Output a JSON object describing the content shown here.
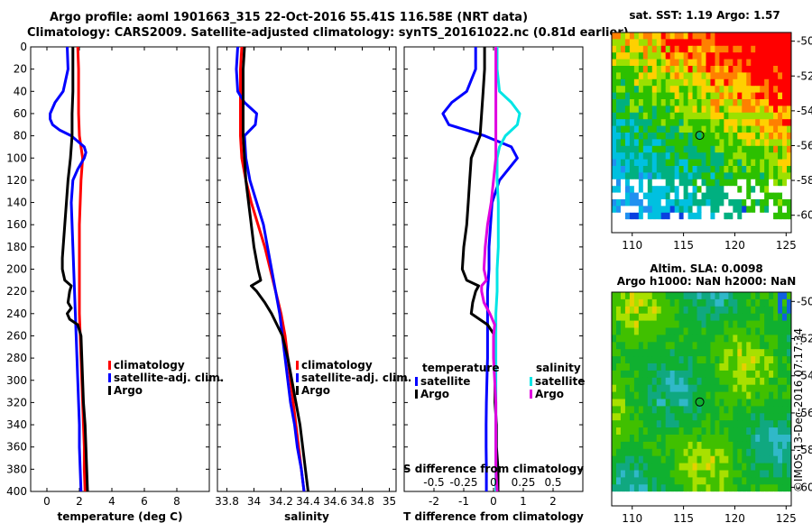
{
  "header": {
    "line1": "Argo profile: aoml 1901663_315 22-Oct-2016 55.41S 116.58E (NRT data)",
    "line2": "Climatology: CARS2009. Satellite-adjusted climatology: synTS_20161022.nc (0.81d earlier)"
  },
  "colors": {
    "climatology": "#ff0000",
    "satellite": "#0000ff",
    "argo": "#000000",
    "sat_salinity": "#00e5e5",
    "argo_salinity": "#e000e0"
  },
  "chart_data": [
    {
      "type": "line",
      "id": "temperature",
      "xlabel": "temperature (deg C)",
      "ylabel": "",
      "xlim": [
        -1,
        10
      ],
      "ylim": [
        400,
        0
      ],
      "xticks": [
        0,
        2,
        4,
        6,
        8
      ],
      "yticks": [
        0,
        20,
        40,
        60,
        80,
        100,
        120,
        140,
        160,
        180,
        200,
        220,
        240,
        260,
        280,
        300,
        320,
        340,
        360,
        380,
        400
      ],
      "legend": [
        {
          "label": "climatology",
          "color": "#ff0000"
        },
        {
          "label": "satellite-adj. clim.",
          "color": "#0000ff"
        },
        {
          "label": "Argo",
          "color": "#000000"
        }
      ],
      "series": [
        {
          "name": "climatology",
          "color": "#ff0000",
          "depth": [
            0,
            20,
            40,
            60,
            80,
            90,
            100,
            110,
            120,
            140,
            160,
            180,
            200,
            220,
            240,
            260,
            280,
            300,
            320,
            340,
            360,
            380,
            400
          ],
          "x": [
            1.9,
            1.95,
            1.95,
            1.95,
            2.0,
            2.1,
            2.2,
            2.15,
            2.1,
            2.05,
            2.0,
            2.0,
            2.0,
            2.0,
            2.0,
            2.05,
            2.1,
            2.15,
            2.2,
            2.25,
            2.3,
            2.3,
            2.35
          ]
        },
        {
          "name": "satellite-adj. clim.",
          "color": "#0000ff",
          "depth": [
            0,
            20,
            40,
            50,
            60,
            65,
            70,
            75,
            80,
            90,
            95,
            100,
            110,
            120,
            140,
            160,
            180,
            200,
            220,
            240,
            260,
            280,
            300,
            320,
            340,
            360,
            380,
            400
          ],
          "x": [
            1.25,
            1.3,
            1.0,
            0.5,
            0.2,
            0.2,
            0.35,
            0.8,
            1.5,
            2.3,
            2.4,
            2.3,
            1.9,
            1.6,
            1.5,
            1.55,
            1.6,
            1.65,
            1.7,
            1.75,
            1.8,
            1.85,
            1.9,
            1.95,
            2.0,
            2.0,
            2.05,
            2.1
          ]
        },
        {
          "name": "Argo",
          "color": "#000000",
          "depth": [
            0,
            20,
            40,
            60,
            80,
            100,
            120,
            140,
            160,
            180,
            190,
            200,
            210,
            215,
            220,
            230,
            235,
            240,
            245,
            250,
            260,
            280,
            300,
            320,
            340,
            360,
            380,
            400
          ],
          "x": [
            1.6,
            1.6,
            1.6,
            1.55,
            1.55,
            1.45,
            1.3,
            1.2,
            1.1,
            1.0,
            0.95,
            0.95,
            1.1,
            1.5,
            1.4,
            1.3,
            1.5,
            1.25,
            1.4,
            1.9,
            2.1,
            2.15,
            2.2,
            2.25,
            2.35,
            2.4,
            2.45,
            2.5
          ]
        }
      ]
    },
    {
      "type": "line",
      "id": "salinity",
      "xlabel": "salinity",
      "ylabel": "",
      "xlim": [
        33.73,
        35.05
      ],
      "ylim": [
        400,
        0
      ],
      "xticks": [
        33.8,
        34,
        34.2,
        34.4,
        34.6,
        34.8,
        35
      ],
      "legend": [
        {
          "label": "climatology",
          "color": "#ff0000"
        },
        {
          "label": "satellite-adj. clim.",
          "color": "#0000ff"
        },
        {
          "label": "Argo",
          "color": "#000000"
        }
      ],
      "series": [
        {
          "name": "climatology",
          "color": "#ff0000",
          "depth": [
            0,
            20,
            40,
            60,
            80,
            100,
            120,
            140,
            160,
            180,
            200,
            220,
            240,
            260,
            280,
            300,
            320,
            340,
            360,
            380,
            400
          ],
          "x": [
            33.91,
            33.9,
            33.9,
            33.9,
            33.9,
            33.91,
            33.94,
            33.98,
            34.03,
            34.08,
            34.12,
            34.16,
            34.2,
            34.23,
            34.25,
            34.27,
            34.29,
            34.31,
            34.33,
            34.35,
            34.37
          ]
        },
        {
          "name": "satellite-adj. clim.",
          "color": "#0000ff",
          "depth": [
            0,
            20,
            40,
            50,
            60,
            70,
            80,
            100,
            120,
            140,
            160,
            180,
            200,
            220,
            240,
            260,
            280,
            300,
            320,
            340,
            360,
            380,
            400
          ],
          "x": [
            33.88,
            33.87,
            33.88,
            33.93,
            34.02,
            34.01,
            33.93,
            33.94,
            33.97,
            34.02,
            34.07,
            34.1,
            34.13,
            34.16,
            34.19,
            34.21,
            34.23,
            34.25,
            34.27,
            34.3,
            34.32,
            34.35,
            34.37
          ]
        },
        {
          "name": "Argo",
          "color": "#000000",
          "depth": [
            0,
            20,
            40,
            60,
            80,
            100,
            120,
            140,
            160,
            180,
            200,
            210,
            215,
            220,
            230,
            240,
            250,
            260,
            280,
            300,
            320,
            340,
            360,
            380,
            400
          ],
          "x": [
            33.93,
            33.92,
            33.92,
            33.92,
            33.92,
            33.93,
            33.94,
            33.96,
            33.98,
            34.0,
            34.03,
            34.05,
            33.98,
            34.02,
            34.08,
            34.13,
            34.17,
            34.21,
            34.25,
            34.28,
            34.31,
            34.34,
            34.36,
            34.38,
            34.4
          ]
        }
      ]
    },
    {
      "type": "line",
      "id": "differences",
      "xlabel": "T difference from climatology",
      "x2label": "S difference from climatology",
      "xlim": [
        -3,
        3
      ],
      "ylim": [
        400,
        0
      ],
      "xticks": [
        -2,
        -1,
        0,
        1,
        2
      ],
      "x2lim": [
        -0.75,
        0.75
      ],
      "x2ticks": [
        "-0.5",
        "-0.25",
        "0",
        "0.25",
        "0.5"
      ],
      "legend_left_title": "temperature",
      "legend_right_title": "salinity",
      "legend": [
        {
          "label": "satellite",
          "color": "#0000ff"
        },
        {
          "label": "Argo",
          "color": "#000000"
        },
        {
          "label": "satellite",
          "color": "#00e5e5"
        },
        {
          "label": "Argo",
          "color": "#e000e0"
        }
      ],
      "series": [
        {
          "name": "T satellite",
          "color": "#0000ff",
          "axis": "T",
          "depth": [
            0,
            20,
            40,
            50,
            60,
            70,
            80,
            90,
            100,
            120,
            140,
            160,
            180,
            200,
            220,
            240,
            260,
            280,
            300,
            320,
            340,
            360,
            380,
            400
          ],
          "x": [
            -0.6,
            -0.6,
            -0.9,
            -1.4,
            -1.7,
            -1.5,
            -0.3,
            0.6,
            0.8,
            0.2,
            -0.05,
            -0.1,
            -0.15,
            -0.15,
            -0.2,
            -0.2,
            -0.2,
            -0.2,
            -0.22,
            -0.24,
            -0.25,
            -0.25,
            -0.24,
            -0.24
          ]
        },
        {
          "name": "T Argo",
          "color": "#000000",
          "axis": "T",
          "depth": [
            0,
            20,
            40,
            60,
            80,
            100,
            120,
            140,
            160,
            180,
            200,
            210,
            215,
            220,
            230,
            240,
            250,
            260,
            280,
            300,
            320,
            340,
            360,
            380,
            400
          ],
          "x": [
            -0.3,
            -0.3,
            -0.35,
            -0.4,
            -0.45,
            -0.75,
            -0.8,
            -0.85,
            -0.9,
            -1.0,
            -1.05,
            -0.9,
            -0.5,
            -0.6,
            -0.7,
            -0.75,
            -0.2,
            0.05,
            0.05,
            0.05,
            0.05,
            0.1,
            0.1,
            0.15,
            0.15
          ]
        },
        {
          "name": "S satellite",
          "color": "#00e5e5",
          "axis": "S",
          "depth": [
            0,
            20,
            40,
            50,
            60,
            70,
            80,
            90,
            100,
            120,
            140,
            160,
            180,
            200,
            220,
            240,
            260,
            280,
            300,
            320,
            340,
            360,
            380,
            400
          ],
          "x": [
            0.03,
            0.03,
            0.05,
            0.15,
            0.22,
            0.2,
            0.1,
            0.05,
            0.03,
            0.03,
            0.04,
            0.04,
            0.04,
            0.03,
            0.03,
            0.02,
            0.02,
            0.02,
            0.02,
            0.02,
            0.02,
            0.02,
            0.02,
            0.02
          ]
        },
        {
          "name": "S Argo",
          "color": "#e000e0",
          "axis": "S",
          "depth": [
            0,
            20,
            40,
            60,
            80,
            100,
            120,
            140,
            160,
            180,
            200,
            210,
            215,
            220,
            230,
            240,
            250,
            260,
            280,
            300,
            320,
            340,
            360,
            380,
            400
          ],
          "x": [
            0.02,
            0.02,
            0.02,
            0.02,
            0.02,
            0.02,
            0.0,
            -0.02,
            -0.05,
            -0.07,
            -0.08,
            -0.06,
            -0.1,
            -0.1,
            -0.08,
            -0.03,
            0.01,
            0.0,
            0.0,
            0.01,
            0.02,
            0.02,
            0.02,
            0.02,
            0.03
          ]
        }
      ]
    },
    {
      "type": "heatmap",
      "id": "sst_map",
      "title": "sat. SST: 1.19 Argo: 1.57",
      "xlim": [
        108,
        125.5
      ],
      "ylim": [
        -61,
        -49.5
      ],
      "xticks": [
        110,
        115,
        120,
        125
      ],
      "yticks": [
        -50,
        -52,
        -54,
        -56,
        -58,
        -60
      ],
      "marker": {
        "lon": 116.58,
        "lat": -55.41
      }
    },
    {
      "type": "heatmap",
      "id": "sla_map",
      "title": "Altim. SLA: 0.0098",
      "subtitle": "Argo h1000: NaN h2000: NaN",
      "xlim": [
        108,
        125.5
      ],
      "ylim": [
        -61,
        -49.5
      ],
      "xticks": [
        110,
        115,
        120,
        125
      ],
      "yticks": [
        -50,
        -52,
        -54,
        -56,
        -58,
        -60
      ],
      "marker": {
        "lon": 116.58,
        "lat": -55.41
      }
    }
  ],
  "credit": "©IMOS 13-Dec-2016 07:17:34"
}
